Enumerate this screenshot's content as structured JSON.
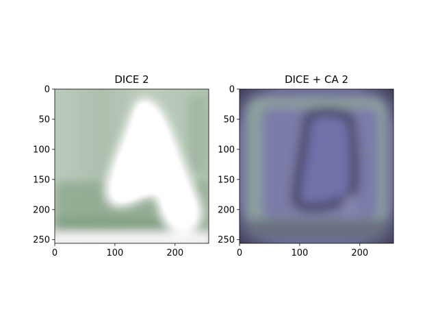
{
  "chart_data": [
    {
      "type": "heatmap",
      "title": "DICE 2",
      "image_size": [
        256,
        256
      ],
      "xlim": [
        0,
        256
      ],
      "ylim": [
        256,
        0
      ],
      "xticks": [
        0,
        100,
        200
      ],
      "yticks": [
        0,
        50,
        100,
        150,
        200,
        250
      ],
      "colors": {
        "background": "#b4c6b6",
        "dark": "#7e9a80",
        "highlight": "#ffffff"
      },
      "grid": false
    },
    {
      "type": "heatmap",
      "title": "DICE + CA 2",
      "image_size": [
        256,
        256
      ],
      "xlim": [
        0,
        256
      ],
      "ylim": [
        256,
        0
      ],
      "xticks": [
        0,
        100,
        200
      ],
      "yticks": [
        0,
        50,
        100,
        150,
        200,
        250
      ],
      "colors": {
        "background": "#7f7fa6",
        "frame": "#8da39c",
        "inner": "#6e6ea4",
        "outline": "#3c3c5c"
      },
      "grid": false
    }
  ]
}
